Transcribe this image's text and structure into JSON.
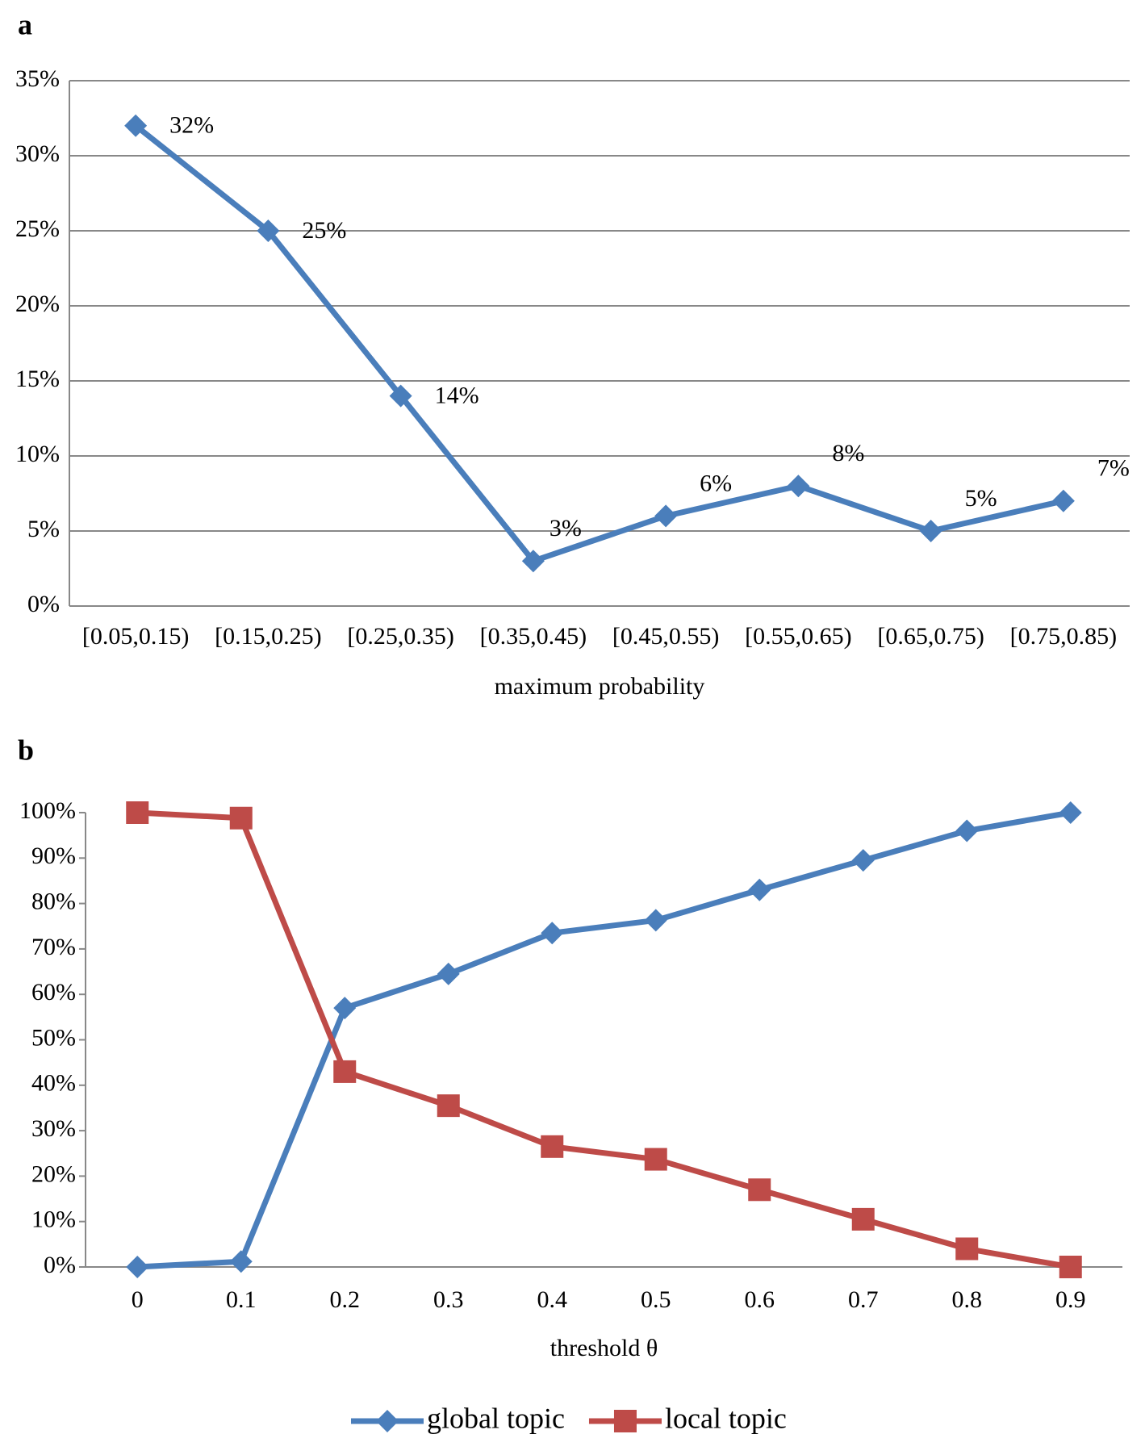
{
  "chart_data": [
    {
      "type": "line",
      "panel": "a",
      "x_label": "maximum probability",
      "categories": [
        "[0.05,0.15)",
        "[0.15,0.25)",
        "[0.25,0.35)",
        "[0.35,0.45)",
        "[0.45,0.55)",
        "[0.55,0.65)",
        "[0.65,0.75)",
        "[0.75,0.85)"
      ],
      "series": [
        {
          "color": "#4a7ebb",
          "marker": "diamond",
          "values": [
            32,
            25,
            14,
            3,
            6,
            8,
            5,
            7
          ],
          "value_labels": [
            "32%",
            "25%",
            "14%",
            "3%",
            "6%",
            "8%",
            "5%",
            "7%"
          ]
        }
      ],
      "ylim": [
        0,
        35
      ],
      "yticks": [
        {
          "value": 0,
          "label": "0%"
        },
        {
          "value": 5,
          "label": "5%"
        },
        {
          "value": 10,
          "label": "10%"
        },
        {
          "value": 15,
          "label": "15%"
        },
        {
          "value": 20,
          "label": "20%"
        },
        {
          "value": 25,
          "label": "25%"
        },
        {
          "value": 30,
          "label": "30%"
        },
        {
          "value": 35,
          "label": "35%"
        }
      ],
      "grid": true
    },
    {
      "type": "line",
      "panel": "b",
      "x_label": "threshold  θ",
      "categories": [
        "0",
        "0.1",
        "0.2",
        "0.3",
        "0.4",
        "0.5",
        "0.6",
        "0.7",
        "0.8",
        "0.9"
      ],
      "series": [
        {
          "name": "global topic",
          "color": "#4a7ebb",
          "marker": "diamond",
          "values": [
            0,
            1.2,
            57,
            64.5,
            73.5,
            76.3,
            83,
            89.5,
            96,
            100
          ]
        },
        {
          "name": "local topic",
          "color": "#be4b48",
          "marker": "square",
          "values": [
            100,
            98.8,
            43,
            35.5,
            26.5,
            23.7,
            17,
            10.5,
            4,
            0
          ]
        }
      ],
      "ylim": [
        0,
        100
      ],
      "yticks": [
        {
          "value": 0,
          "label": "0%"
        },
        {
          "value": 10,
          "label": "10%"
        },
        {
          "value": 20,
          "label": "20%"
        },
        {
          "value": 30,
          "label": "30%"
        },
        {
          "value": 40,
          "label": "40%"
        },
        {
          "value": 50,
          "label": "50%"
        },
        {
          "value": 60,
          "label": "60%"
        },
        {
          "value": 70,
          "label": "70%"
        },
        {
          "value": 80,
          "label": "80%"
        },
        {
          "value": 90,
          "label": "90%"
        },
        {
          "value": 100,
          "label": "100%"
        }
      ],
      "grid": false,
      "legend": "bottom"
    }
  ]
}
